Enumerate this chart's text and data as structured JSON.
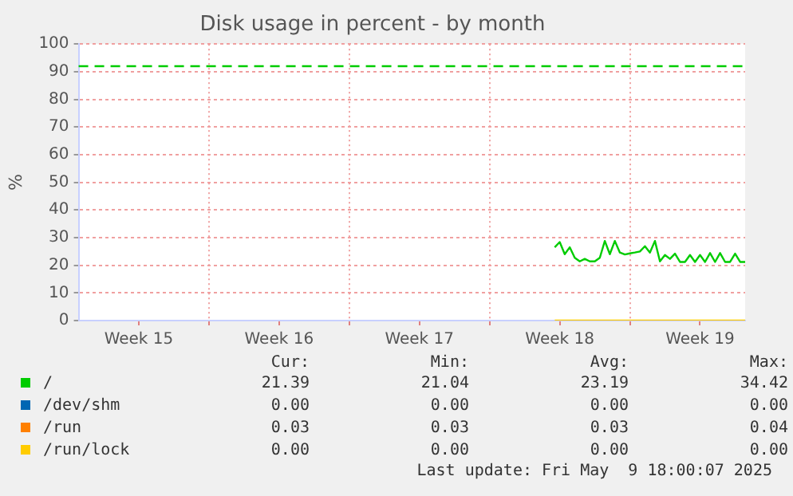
{
  "chart_data": {
    "type": "line",
    "title": "Disk usage in percent - by month",
    "ylabel": "%",
    "categories": [
      null,
      null,
      null,
      null,
      null,
      null,
      null,
      null,
      null,
      null,
      null,
      null,
      "Week 15",
      null,
      null,
      null,
      null,
      null,
      null,
      null,
      null,
      null,
      null,
      null,
      null,
      null,
      null,
      null,
      null,
      null,
      null,
      null,
      null,
      null,
      null,
      null,
      null,
      null,
      null,
      null,
      "Week 16",
      null,
      null,
      null,
      null,
      null,
      null,
      null,
      null,
      null,
      null,
      null,
      null,
      null,
      null,
      null,
      null,
      null,
      null,
      null,
      null,
      null,
      null,
      null,
      null,
      null,
      null,
      null,
      "Week 17",
      null,
      null,
      null,
      null,
      null,
      null,
      null,
      null,
      null,
      null,
      null,
      null,
      null,
      null,
      null,
      null,
      null,
      null,
      null,
      null,
      null,
      null,
      null,
      null,
      null,
      null,
      null,
      "Week 18",
      null,
      null,
      null,
      null,
      null,
      null,
      null,
      null,
      null,
      null,
      null,
      null,
      null,
      null,
      null,
      null,
      null,
      null,
      null,
      null,
      null,
      null,
      null,
      null,
      null,
      null,
      null,
      "Week 19",
      null,
      null,
      null,
      null,
      null,
      null,
      null,
      null,
      null
    ],
    "ylim": [
      0,
      100
    ],
    "yticks": [
      0,
      10,
      20,
      30,
      40,
      50,
      60,
      70,
      80,
      90,
      100
    ],
    "grid": true,
    "legend": "bottom",
    "marker": "none",
    "line_style": "solid",
    "series": [
      {
        "name": "/",
        "color": "#00cc00",
        "values": [
          null,
          null,
          null,
          null,
          null,
          null,
          null,
          null,
          null,
          null,
          null,
          null,
          null,
          null,
          null,
          null,
          null,
          null,
          null,
          null,
          null,
          null,
          null,
          null,
          null,
          null,
          null,
          null,
          null,
          null,
          null,
          null,
          null,
          null,
          null,
          null,
          null,
          null,
          null,
          null,
          null,
          null,
          null,
          null,
          null,
          null,
          null,
          null,
          null,
          null,
          null,
          null,
          null,
          null,
          null,
          null,
          null,
          null,
          null,
          null,
          null,
          null,
          null,
          null,
          null,
          null,
          null,
          null,
          null,
          null,
          null,
          null,
          null,
          null,
          null,
          null,
          null,
          null,
          null,
          null,
          null,
          null,
          null,
          null,
          null,
          null,
          null,
          null,
          null,
          null,
          null,
          null,
          null,
          null,
          null,
          26.5,
          28.4,
          24,
          26.5,
          22.7,
          21.4,
          22.3,
          21.4,
          21.4,
          22.7,
          28.8,
          24,
          28.8,
          24.6,
          23.9,
          24.3,
          24.6,
          25,
          26.9,
          24.6,
          28.8,
          21.4,
          23.7,
          22.3,
          24.2,
          21.2,
          21.2,
          23.7,
          21.2,
          23.7,
          21.2,
          24.4,
          21.2,
          24.4,
          21.2,
          21.2,
          24.2,
          21.2,
          21.2
        ]
      },
      {
        "name": "/dev/shm",
        "color": "#0066b3",
        "values": [
          null,
          null,
          null,
          null,
          null,
          null,
          null,
          null,
          null,
          null,
          null,
          null,
          null,
          null,
          null,
          null,
          null,
          null,
          null,
          null,
          null,
          null,
          null,
          null,
          null,
          null,
          null,
          null,
          null,
          null,
          null,
          null,
          null,
          null,
          null,
          null,
          null,
          null,
          null,
          null,
          null,
          null,
          null,
          null,
          null,
          null,
          null,
          null,
          null,
          null,
          null,
          null,
          null,
          null,
          null,
          null,
          null,
          null,
          null,
          null,
          null,
          null,
          null,
          null,
          null,
          null,
          null,
          null,
          null,
          null,
          null,
          null,
          null,
          null,
          null,
          null,
          null,
          null,
          null,
          null,
          null,
          null,
          null,
          null,
          null,
          null,
          null,
          null,
          null,
          null,
          null,
          null,
          null,
          null,
          null,
          null,
          null,
          null,
          null,
          null,
          null,
          null,
          null,
          null,
          null,
          null,
          null,
          null,
          null,
          null,
          null,
          null,
          null,
          null,
          null,
          null,
          null,
          null,
          null,
          null,
          null,
          null,
          null,
          null,
          null,
          null,
          null,
          null,
          null,
          null,
          null,
          null,
          null,
          null
        ]
      },
      {
        "name": "/run",
        "color": "#ff8000",
        "values": [
          null,
          null,
          null,
          null,
          null,
          null,
          null,
          null,
          null,
          null,
          null,
          null,
          null,
          null,
          null,
          null,
          null,
          null,
          null,
          null,
          null,
          null,
          null,
          null,
          null,
          null,
          null,
          null,
          null,
          null,
          null,
          null,
          null,
          null,
          null,
          null,
          null,
          null,
          null,
          null,
          null,
          null,
          null,
          null,
          null,
          null,
          null,
          null,
          null,
          null,
          null,
          null,
          null,
          null,
          null,
          null,
          null,
          null,
          null,
          null,
          null,
          null,
          null,
          null,
          null,
          null,
          null,
          null,
          null,
          null,
          null,
          null,
          null,
          null,
          null,
          null,
          null,
          null,
          null,
          null,
          null,
          null,
          null,
          null,
          null,
          null,
          null,
          null,
          null,
          null,
          null,
          null,
          null,
          null,
          null,
          null,
          null,
          null,
          null,
          null,
          null,
          null,
          null,
          null,
          null,
          null,
          null,
          null,
          null,
          null,
          null,
          null,
          null,
          null,
          null,
          null,
          null,
          null,
          null,
          null,
          null,
          null,
          null,
          null,
          null,
          null,
          null,
          null,
          null,
          null,
          null,
          null,
          null,
          null
        ]
      },
      {
        "name": "/run/lock",
        "color": "#ffcc00",
        "values": [
          null,
          null,
          null,
          null,
          null,
          null,
          null,
          null,
          null,
          null,
          null,
          null,
          null,
          null,
          null,
          null,
          null,
          null,
          null,
          null,
          null,
          null,
          null,
          null,
          null,
          null,
          null,
          null,
          null,
          null,
          null,
          null,
          null,
          null,
          null,
          null,
          null,
          null,
          null,
          null,
          null,
          null,
          null,
          null,
          null,
          null,
          null,
          null,
          null,
          null,
          null,
          null,
          null,
          null,
          null,
          null,
          null,
          null,
          null,
          null,
          null,
          null,
          null,
          null,
          null,
          null,
          null,
          null,
          null,
          null,
          null,
          null,
          null,
          null,
          null,
          null,
          null,
          null,
          null,
          null,
          null,
          null,
          null,
          null,
          null,
          null,
          null,
          null,
          null,
          null,
          null,
          null,
          null,
          null,
          null,
          0,
          0,
          0,
          0,
          0,
          0,
          0,
          0,
          0,
          0,
          0,
          0,
          0,
          0,
          0,
          0,
          0,
          0,
          0,
          0,
          0,
          0,
          0,
          0,
          0,
          0,
          0,
          0,
          0,
          0,
          0,
          0,
          0,
          0,
          0,
          0,
          0,
          0,
          0
        ]
      }
    ],
    "ref_lines": [
      {
        "axis": "y",
        "value": 92,
        "color": "#00cc00",
        "line_style": "dashed"
      }
    ],
    "annotations": [
      "Cur:",
      "Min:",
      "Avg:",
      "Max:",
      "21.39",
      "21.04",
      "23.19",
      "34.42",
      "0.00",
      "0.00",
      "0.00",
      "0.00",
      "0.03",
      "0.03",
      "0.03",
      "0.04",
      "0.00",
      "0.00",
      "0.00",
      "0.00",
      "Last update: Fri May  9 18:00:07 2025"
    ]
  }
}
